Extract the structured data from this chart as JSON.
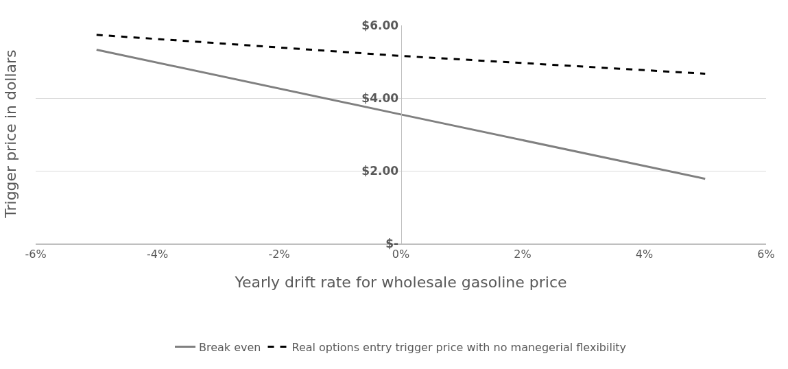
{
  "chart_data": {
    "type": "line",
    "xlabel": "Yearly drift rate for wholesale gasoline price",
    "ylabel": "Trigger price in dollars",
    "x": [
      -5,
      0,
      5
    ],
    "series": [
      {
        "name": "Break even",
        "color": "#808080",
        "line_style": "solid",
        "values": [
          5.33,
          3.55,
          1.78
        ]
      },
      {
        "name": "Real options entry trigger price with no manegerial flexibility",
        "color": "#000000",
        "line_style": "dashed",
        "values": [
          5.74,
          5.16,
          4.67
        ]
      }
    ],
    "xlim": [
      -6,
      6
    ],
    "xticks": [
      {
        "value": -6,
        "label": "-6%"
      },
      {
        "value": -4,
        "label": "-4%"
      },
      {
        "value": -2,
        "label": "-2%"
      },
      {
        "value": 0,
        "label": "0%"
      },
      {
        "value": 2,
        "label": "2%"
      },
      {
        "value": 4,
        "label": "4%"
      },
      {
        "value": 6,
        "label": "6%"
      }
    ],
    "ylim": [
      0,
      6
    ],
    "yticks": [
      {
        "value": 0,
        "label": "$-"
      },
      {
        "value": 2,
        "label": "$2.00"
      },
      {
        "value": 4,
        "label": "$4.00"
      },
      {
        "value": 6,
        "label": "$6.00"
      }
    ],
    "grid": "y",
    "legend": "bottom",
    "marker": "none"
  }
}
